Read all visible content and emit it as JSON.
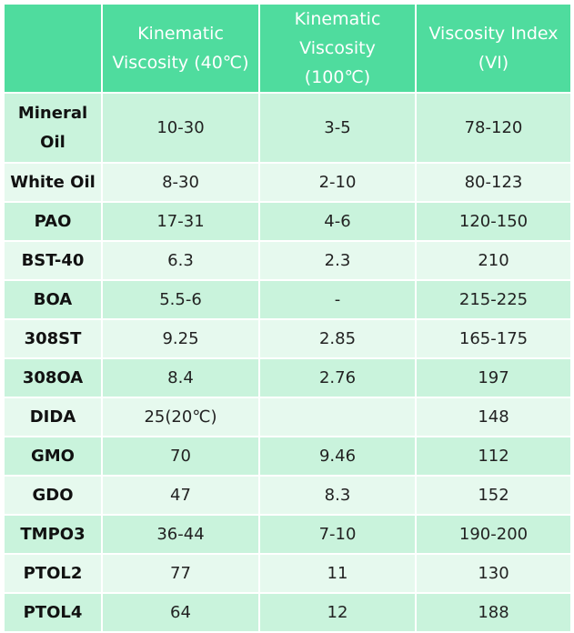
{
  "table": {
    "columns": [
      "",
      "Kinematic Viscosity (40℃)",
      "Kinematic Viscosity (100℃)",
      "Viscosity Index (VI)"
    ],
    "rows": [
      {
        "name": "Mineral Oil",
        "kv40": "10-30",
        "kv100": "3-5",
        "vi": "78-120"
      },
      {
        "name": "White Oil",
        "kv40": "8-30",
        "kv100": "2-10",
        "vi": "80-123"
      },
      {
        "name": "PAO",
        "kv40": "17-31",
        "kv100": "4-6",
        "vi": "120-150"
      },
      {
        "name": "BST-40",
        "kv40": "6.3",
        "kv100": "2.3",
        "vi": "210"
      },
      {
        "name": "BOA",
        "kv40": "5.5-6",
        "kv100": "-",
        "vi": "215-225"
      },
      {
        "name": "308ST",
        "kv40": "9.25",
        "kv100": "2.85",
        "vi": "165-175"
      },
      {
        "name": "308OA",
        "kv40": "8.4",
        "kv100": "2.76",
        "vi": "197"
      },
      {
        "name": "DIDA",
        "kv40": "25(20℃)",
        "kv100": "",
        "vi": "148"
      },
      {
        "name": "GMO",
        "kv40": "70",
        "kv100": "9.46",
        "vi": "112"
      },
      {
        "name": "GDO",
        "kv40": "47",
        "kv100": "8.3",
        "vi": "152"
      },
      {
        "name": "TMPO3",
        "kv40": "36-44",
        "kv100": "7-10",
        "vi": "190-200"
      },
      {
        "name": "PTOL2",
        "kv40": "77",
        "kv100": "11",
        "vi": "130"
      },
      {
        "name": "PTOL4",
        "kv40": "64",
        "kv100": "12",
        "vi": "188"
      }
    ]
  },
  "colors": {
    "header_bg": "#4fdc9e",
    "row_shade_a": "#c9f3dc",
    "row_shade_b": "#e6f9ee"
  }
}
